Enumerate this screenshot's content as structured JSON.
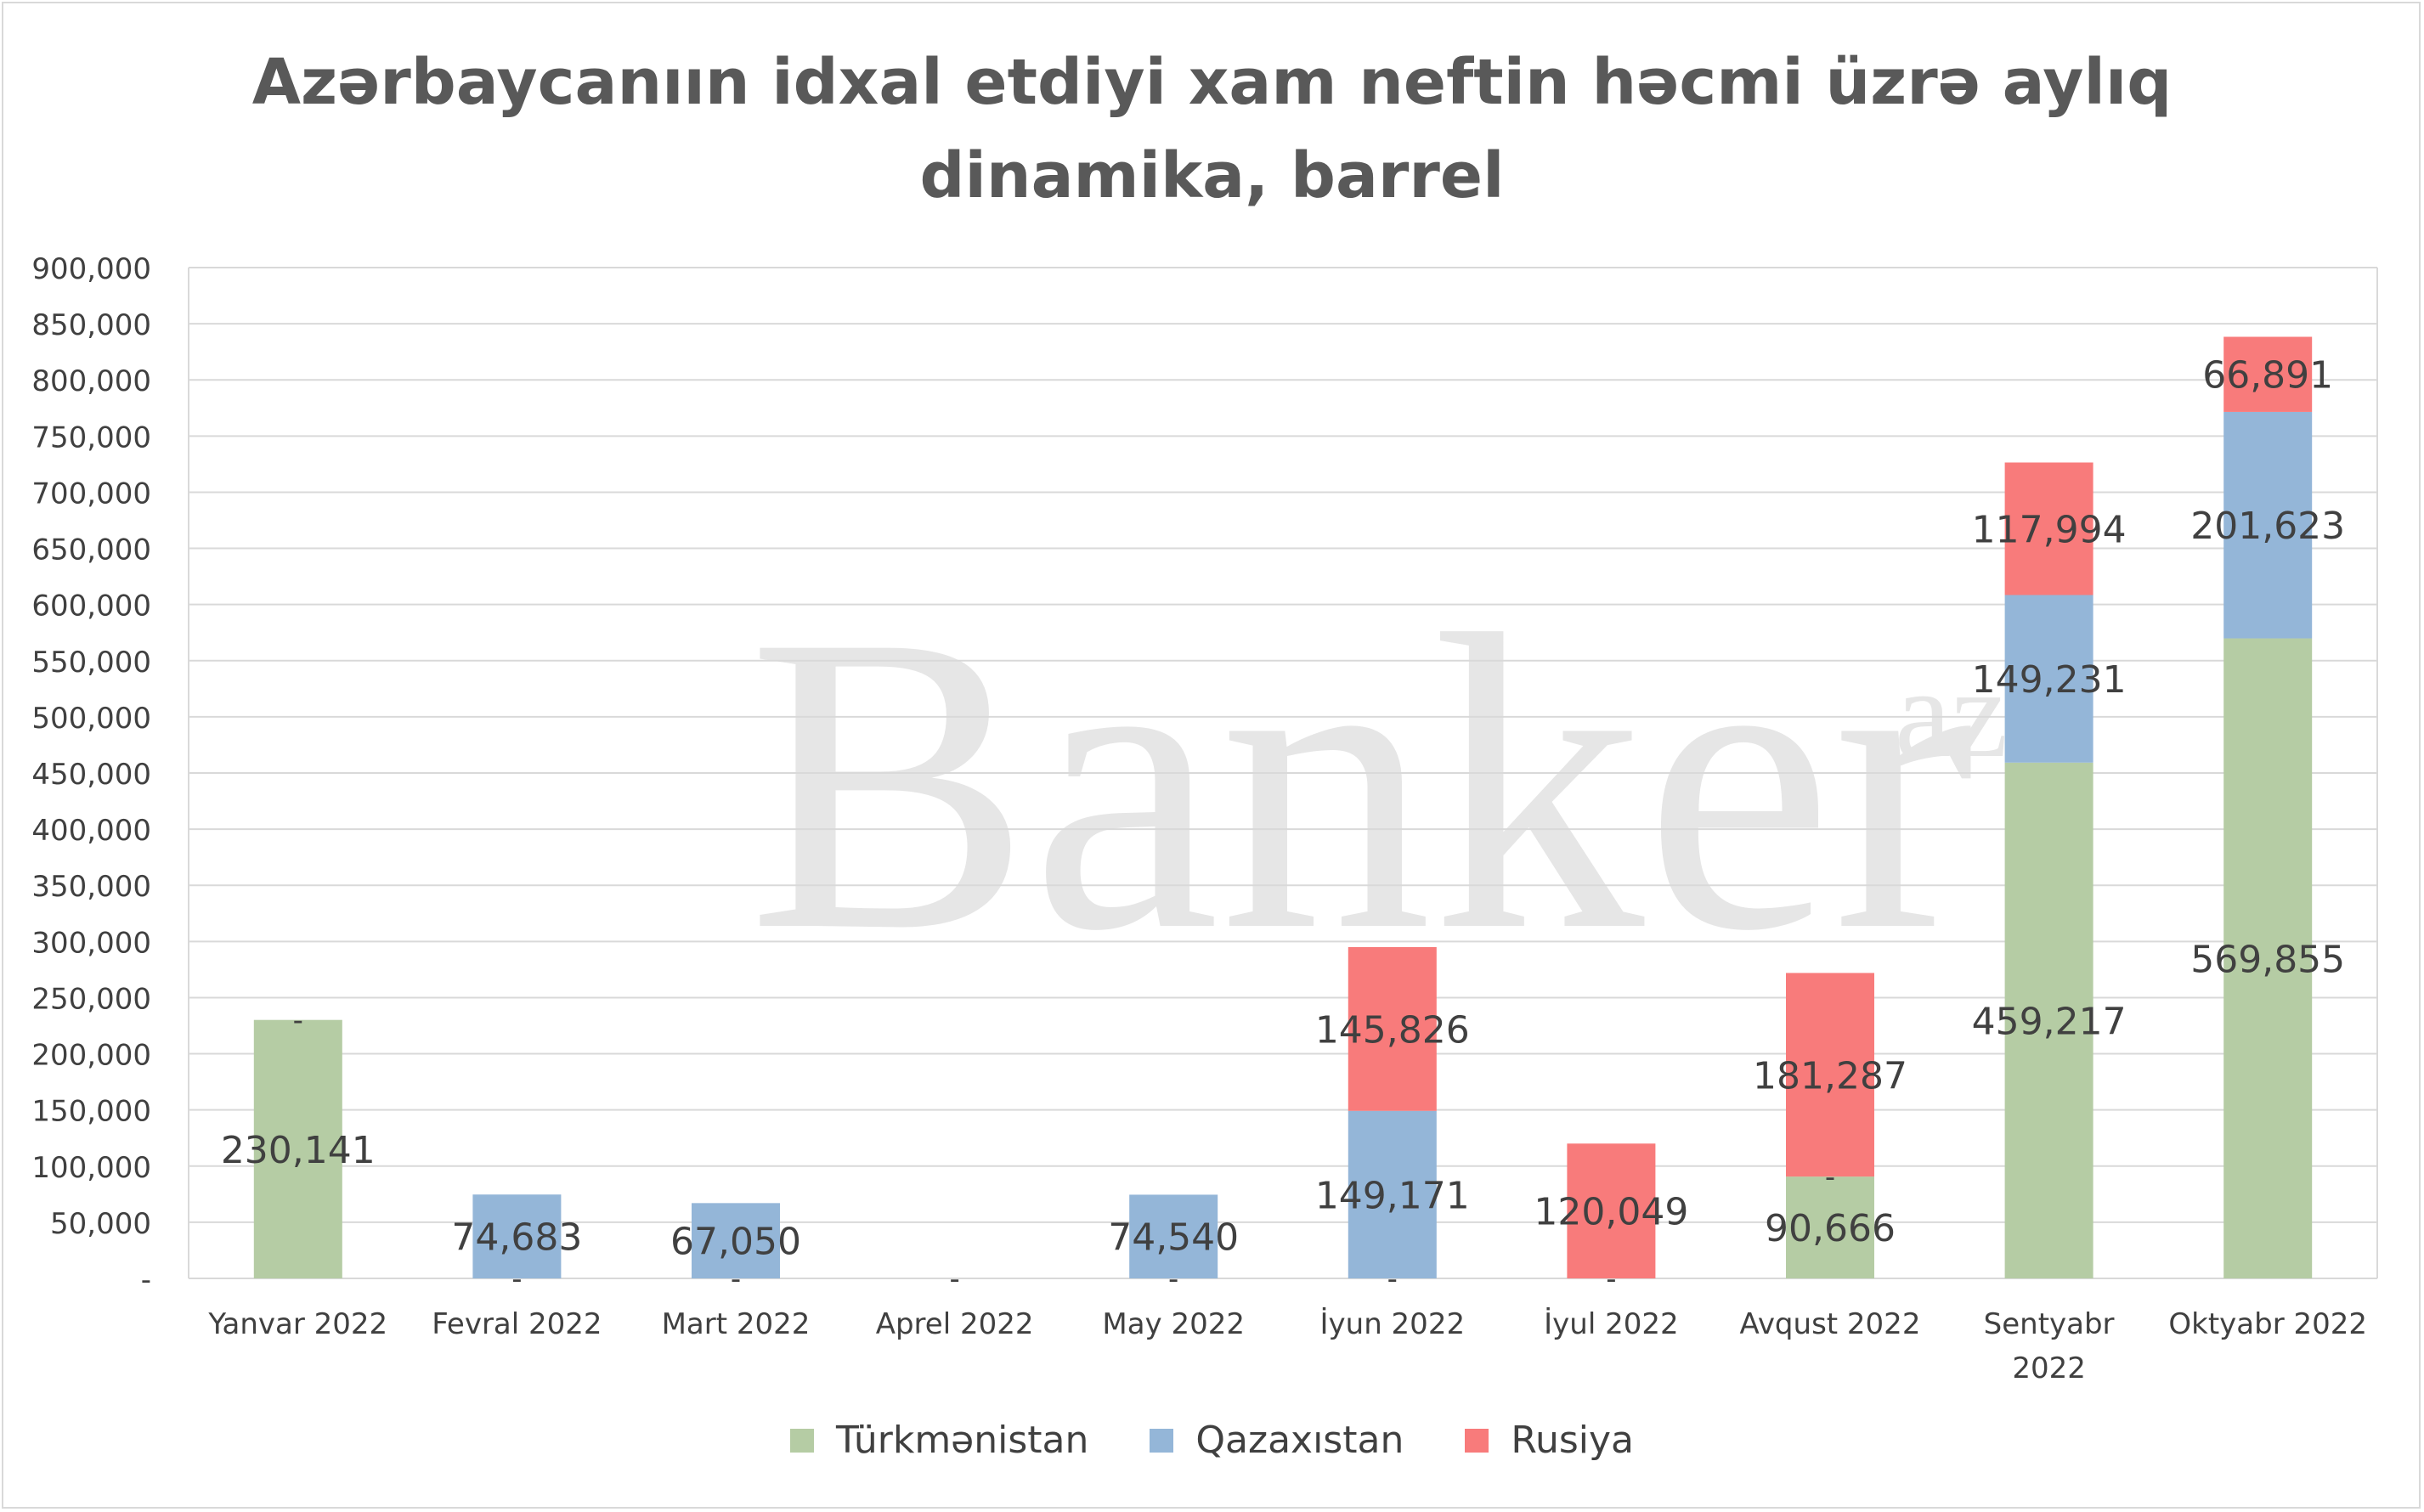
{
  "chart_data": {
    "type": "bar",
    "stacked": true,
    "title_lines": [
      "Azərbaycanıın idxal etdiyi xam neftin həcmi üzrə aylıq",
      "dinamika, barrel"
    ],
    "watermark": "Banker",
    "watermark_suffix": "az",
    "categories": [
      [
        "Yanvar 2022"
      ],
      [
        "Fevral  2022"
      ],
      [
        "Mart  2022"
      ],
      [
        "Aprel  2022"
      ],
      [
        "May 2022"
      ],
      [
        "İyun  2022"
      ],
      [
        "İyul  2022"
      ],
      [
        "Avqust  2022"
      ],
      [
        "Sentyabr",
        "2022"
      ],
      [
        "Oktyabr  2022"
      ]
    ],
    "series": [
      {
        "name": "Türkmənistan",
        "color": "#b5cca4",
        "values": [
          230141,
          0,
          0,
          0,
          0,
          0,
          0,
          90666,
          459217,
          569855
        ],
        "labels": [
          "230,141",
          "-",
          "-",
          "-",
          "-",
          "-",
          "-",
          "90,666",
          "459,217",
          "569,855"
        ]
      },
      {
        "name": "Qazaxıstan",
        "color": "#94b6d8",
        "values": [
          0,
          74683,
          67050,
          0,
          74540,
          149171,
          0,
          0,
          149231,
          201623
        ],
        "labels": [
          "-",
          "74,683",
          "67,050",
          "",
          "74,540",
          "149,171",
          "",
          "-",
          "149,231",
          "201,623"
        ]
      },
      {
        "name": "Rusiya",
        "color": "#f87b7b",
        "values": [
          0,
          0,
          0,
          0,
          0,
          145826,
          120049,
          181287,
          117994,
          66891
        ],
        "labels": [
          "",
          "",
          "",
          "",
          "",
          "145,826",
          "120,049",
          "181,287",
          "117,994",
          "66,891"
        ]
      }
    ],
    "ylim": [
      0,
      900000
    ],
    "y_ticks": [
      0,
      50000,
      100000,
      150000,
      200000,
      250000,
      300000,
      350000,
      400000,
      450000,
      500000,
      550000,
      600000,
      650000,
      700000,
      750000,
      800000,
      850000,
      900000
    ],
    "y_tick_labels": [
      "-",
      "50,000",
      "100,000",
      "150,000",
      "200,000",
      "250,000",
      "300,000",
      "350,000",
      "400,000",
      "450,000",
      "500,000",
      "550,000",
      "600,000",
      "650,000",
      "700,000",
      "750,000",
      "800,000",
      "850,000",
      "900,000"
    ],
    "grid": true,
    "legend_position": "bottom"
  }
}
